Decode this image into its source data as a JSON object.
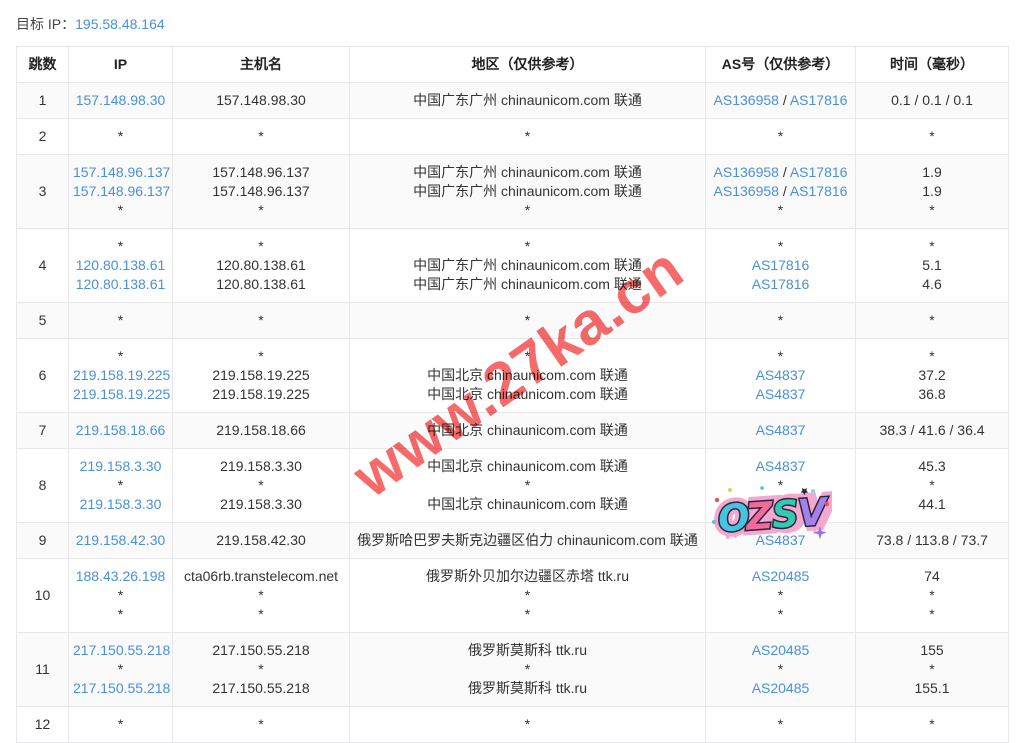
{
  "header": {
    "label": "目标 IP：",
    "target_ip": "195.58.48.164"
  },
  "table": {
    "headers": [
      "跳数",
      "IP",
      "主机名",
      "地区（仅供参考）",
      "AS号（仅供参考）",
      "时间（毫秒）"
    ],
    "rows": [
      {
        "hop": "1",
        "ip": [
          "157.148.98.30"
        ],
        "host": [
          "157.148.98.30"
        ],
        "region": [
          "中国广东广州 chinaunicom.com 联通"
        ],
        "asn": [
          [
            {
              "t": "AS136958",
              "l": true
            },
            {
              "t": " / "
            },
            {
              "t": "AS17816",
              "l": true
            }
          ]
        ],
        "time": [
          "0.1 / 0.1 / 0.1"
        ]
      },
      {
        "hop": "2",
        "ip": [
          "*"
        ],
        "host": [
          "*"
        ],
        "region": [
          "*"
        ],
        "asn": [
          [
            {
              "t": "*"
            }
          ]
        ],
        "time": [
          "*"
        ]
      },
      {
        "hop": "3",
        "ip": [
          "157.148.96.137",
          "157.148.96.137",
          "*"
        ],
        "host": [
          "157.148.96.137",
          "157.148.96.137",
          "*"
        ],
        "region": [
          "中国广东广州 chinaunicom.com 联通",
          "中国广东广州 chinaunicom.com 联通",
          "*"
        ],
        "asn": [
          [
            {
              "t": "AS136958",
              "l": true
            },
            {
              "t": " / "
            },
            {
              "t": "AS17816",
              "l": true
            }
          ],
          [
            {
              "t": "AS136958",
              "l": true
            },
            {
              "t": " / "
            },
            {
              "t": "AS17816",
              "l": true
            }
          ],
          [
            {
              "t": "*"
            }
          ]
        ],
        "time": [
          "1.9",
          "1.9",
          "*"
        ]
      },
      {
        "hop": "4",
        "ip": [
          "*",
          "120.80.138.61",
          "120.80.138.61"
        ],
        "host": [
          "*",
          "120.80.138.61",
          "120.80.138.61"
        ],
        "region": [
          "*",
          "中国广东广州 chinaunicom.com 联通",
          "中国广东广州 chinaunicom.com 联通"
        ],
        "asn": [
          [
            {
              "t": "*"
            }
          ],
          [
            {
              "t": "AS17816",
              "l": true
            }
          ],
          [
            {
              "t": "AS17816",
              "l": true
            }
          ]
        ],
        "time": [
          "*",
          "5.1",
          "4.6"
        ]
      },
      {
        "hop": "5",
        "ip": [
          "*"
        ],
        "host": [
          "*"
        ],
        "region": [
          "*"
        ],
        "asn": [
          [
            {
              "t": "*"
            }
          ]
        ],
        "time": [
          "*"
        ]
      },
      {
        "hop": "6",
        "ip": [
          "*",
          "219.158.19.225",
          "219.158.19.225"
        ],
        "host": [
          "*",
          "219.158.19.225",
          "219.158.19.225"
        ],
        "region": [
          "*",
          "中国北京 chinaunicom.com 联通",
          "中国北京 chinaunicom.com 联通"
        ],
        "asn": [
          [
            {
              "t": "*"
            }
          ],
          [
            {
              "t": "AS4837",
              "l": true
            }
          ],
          [
            {
              "t": "AS4837",
              "l": true
            }
          ]
        ],
        "time": [
          "*",
          "37.2",
          "36.8"
        ]
      },
      {
        "hop": "7",
        "ip": [
          "219.158.18.66"
        ],
        "host": [
          "219.158.18.66"
        ],
        "region": [
          "中国北京 chinaunicom.com 联通"
        ],
        "asn": [
          [
            {
              "t": "AS4837",
              "l": true
            }
          ]
        ],
        "time": [
          "38.3 / 41.6 / 36.4"
        ]
      },
      {
        "hop": "8",
        "ip": [
          "219.158.3.30",
          "*",
          "219.158.3.30"
        ],
        "host": [
          "219.158.3.30",
          "*",
          "219.158.3.30"
        ],
        "region": [
          "中国北京 chinaunicom.com 联通",
          "*",
          "中国北京 chinaunicom.com 联通"
        ],
        "asn": [
          [
            {
              "t": "AS4837",
              "l": true
            }
          ],
          [
            {
              "t": "*"
            }
          ],
          [
            {
              "t": "AS4837",
              "l": true
            }
          ]
        ],
        "time": [
          "45.3",
          "*",
          "44.1"
        ]
      },
      {
        "hop": "9",
        "ip": [
          "219.158.42.30"
        ],
        "host": [
          "219.158.42.30"
        ],
        "region": [
          "俄罗斯哈巴罗夫斯克边疆区伯力 chinaunicom.com 联通"
        ],
        "asn": [
          [
            {
              "t": "AS4837",
              "l": true
            }
          ]
        ],
        "time": [
          "73.8 / 113.8 / 73.7"
        ]
      },
      {
        "hop": "10",
        "ip": [
          "188.43.26.198",
          "*",
          "*"
        ],
        "host": [
          "cta06rb.transtelecom.net",
          "*",
          "*"
        ],
        "region": [
          "俄罗斯外贝加尔边疆区赤塔 ttk.ru",
          "*",
          "*"
        ],
        "asn": [
          [
            {
              "t": "AS20485",
              "l": true
            }
          ],
          [
            {
              "t": "*"
            }
          ],
          [
            {
              "t": "*"
            }
          ]
        ],
        "time": [
          "74",
          "*",
          "*"
        ]
      },
      {
        "hop": "11",
        "ip": [
          "217.150.55.218",
          "*",
          "217.150.55.218"
        ],
        "host": [
          "217.150.55.218",
          "*",
          "217.150.55.218"
        ],
        "region": [
          "俄罗斯莫斯科 ttk.ru",
          "*",
          "俄罗斯莫斯科 ttk.ru"
        ],
        "asn": [
          [
            {
              "t": "AS20485",
              "l": true
            }
          ],
          [
            {
              "t": "*"
            }
          ],
          [
            {
              "t": "AS20485",
              "l": true
            }
          ]
        ],
        "time": [
          "155",
          "*",
          "155.1"
        ]
      },
      {
        "hop": "12",
        "ip": [
          "*"
        ],
        "host": [
          "*"
        ],
        "region": [
          "*"
        ],
        "asn": [
          [
            {
              "t": "*"
            }
          ]
        ],
        "time": [
          "*"
        ]
      }
    ]
  },
  "watermark": {
    "text": "www.27ka.cn",
    "color": "#f76a6a"
  },
  "sticker": {
    "letters": [
      "O",
      "Z",
      "S",
      "V"
    ],
    "colors": [
      "#45c4dd",
      "#f2699c",
      "#36c9b1",
      "#a482ec"
    ]
  }
}
